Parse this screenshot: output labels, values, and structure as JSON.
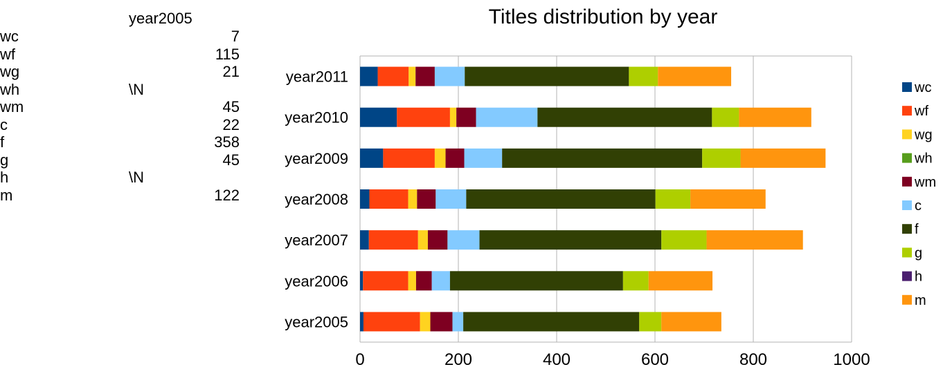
{
  "table": {
    "header": "year2005",
    "rows": [
      {
        "label": "wc",
        "value": "7"
      },
      {
        "label": "wf",
        "value": "115"
      },
      {
        "label": "wg",
        "value": "21"
      },
      {
        "label": "wh",
        "value": "\\N"
      },
      {
        "label": "wm",
        "value": "45"
      },
      {
        "label": "c",
        "value": "22"
      },
      {
        "label": "f",
        "value": "358"
      },
      {
        "label": "g",
        "value": "45"
      },
      {
        "label": "h",
        "value": "\\N"
      },
      {
        "label": "m",
        "value": "122"
      }
    ]
  },
  "chart_data": {
    "type": "bar",
    "orientation": "horizontal",
    "stacked": true,
    "title": "Titles distribution by year",
    "xlabel": "",
    "ylabel": "",
    "xlim": [
      0,
      1000
    ],
    "xticks": [
      "0",
      "200",
      "400",
      "600",
      "800",
      "1000"
    ],
    "grid": true,
    "legend_position": "right",
    "categories": [
      "year2005",
      "year2006",
      "year2007",
      "year2008",
      "year2009",
      "year2010",
      "year2011"
    ],
    "series": [
      {
        "name": "wc",
        "color": "#004586",
        "values": [
          7,
          6,
          18,
          19,
          47,
          75,
          36
        ]
      },
      {
        "name": "wf",
        "color": "#ff420e",
        "values": [
          115,
          92,
          100,
          79,
          105,
          108,
          63
        ]
      },
      {
        "name": "wg",
        "color": "#ffd320",
        "values": [
          21,
          16,
          20,
          18,
          22,
          13,
          14
        ]
      },
      {
        "name": "wh",
        "color": "#579d1c",
        "values": [
          0,
          0,
          0,
          0,
          0,
          0,
          0
        ]
      },
      {
        "name": "wm",
        "color": "#7e0021",
        "values": [
          45,
          32,
          40,
          38,
          38,
          40,
          39
        ]
      },
      {
        "name": "c",
        "color": "#83caff",
        "values": [
          22,
          37,
          65,
          62,
          77,
          125,
          61
        ]
      },
      {
        "name": "f",
        "color": "#314004",
        "values": [
          358,
          352,
          370,
          385,
          407,
          355,
          334
        ]
      },
      {
        "name": "g",
        "color": "#aecf00",
        "values": [
          45,
          52,
          92,
          71,
          78,
          55,
          59
        ]
      },
      {
        "name": "h",
        "color": "#4b1f6f",
        "values": [
          0,
          0,
          0,
          0,
          0,
          0,
          0
        ]
      },
      {
        "name": "m",
        "color": "#ff950e",
        "values": [
          122,
          130,
          196,
          153,
          173,
          147,
          149
        ]
      }
    ]
  }
}
